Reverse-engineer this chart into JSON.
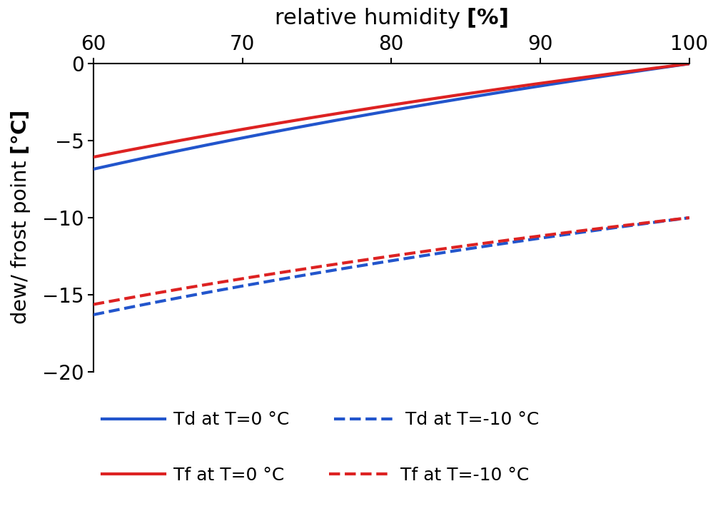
{
  "title_top_normal": "relative humidity ",
  "title_top_bold": "[%]",
  "ylabel_normal": "dew/ frost point ",
  "ylabel_bold": "[°C]",
  "xmin": 60,
  "xmax": 100,
  "ymin": -20,
  "ymax": 0,
  "xticks": [
    60,
    70,
    80,
    90,
    100
  ],
  "yticks": [
    0,
    -5,
    -10,
    -15,
    -20
  ],
  "T0": 0,
  "T1": -10,
  "color_blue": "#2255cc",
  "color_red": "#dd2222",
  "legend_entries": [
    {
      "label": "Td at T=0 °C",
      "color": "#2255cc",
      "linestyle": "solid",
      "lw": 3.0
    },
    {
      "label": "Td at T=-10 °C",
      "color": "#2255cc",
      "linestyle": "dashed",
      "lw": 3.0
    },
    {
      "label": "Tf at T=0 °C",
      "color": "#dd2222",
      "linestyle": "solid",
      "lw": 3.0
    },
    {
      "label": "Tf at T=-10 °C",
      "color": "#dd2222",
      "linestyle": "dashed",
      "lw": 3.0
    }
  ],
  "background_color": "#ffffff",
  "title_fontsize": 22,
  "label_fontsize": 21,
  "tick_fontsize": 20,
  "legend_fontsize": 18
}
